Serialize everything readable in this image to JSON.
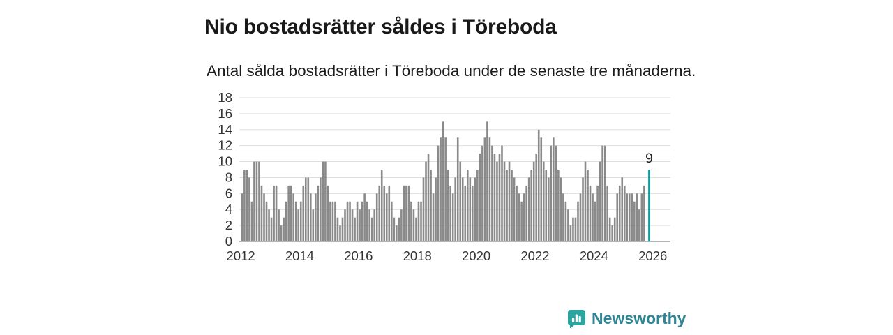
{
  "header": {
    "title": "Nio bostadsrätter såldes i Töreboda",
    "subtitle": "Antal sålda bostadsrätter i Töreboda under de senaste tre månaderna."
  },
  "chart_data": {
    "type": "bar",
    "title": "Nio bostadsrätter såldes i Töreboda",
    "subtitle": "Antal sålda bostadsrätter i Töreboda under de senaste tre månaderna.",
    "frequency": "monthly",
    "x_start_year": 2012,
    "x_tick_labels": [
      "2012",
      "2014",
      "2016",
      "2018",
      "2020",
      "2022",
      "2024",
      "2026"
    ],
    "y_ticks": [
      0,
      2,
      4,
      6,
      8,
      10,
      12,
      14,
      16,
      18
    ],
    "ylim": [
      0,
      18
    ],
    "grid": true,
    "legend": "none",
    "bar_color": "#8a8a8a",
    "highlight_color": "#00a2a2",
    "last_value_label": "9",
    "values": [
      6,
      9,
      9,
      8,
      5,
      10,
      10,
      10,
      7,
      6,
      5,
      4,
      3,
      7,
      7,
      4,
      2,
      3,
      5,
      7,
      7,
      6,
      5,
      4,
      5,
      7,
      8,
      8,
      6,
      4,
      6,
      7,
      8,
      10,
      10,
      7,
      5,
      5,
      5,
      3,
      2,
      3,
      4,
      5,
      5,
      4,
      3,
      5,
      4,
      5,
      6,
      5,
      4,
      3,
      4,
      6,
      7,
      9,
      7,
      6,
      7,
      5,
      3,
      2,
      3,
      4,
      7,
      7,
      7,
      5,
      4,
      3,
      5,
      5,
      8,
      10,
      11,
      9,
      6,
      8,
      12,
      13,
      15,
      13,
      9,
      7,
      6,
      8,
      13,
      10,
      8,
      7,
      9,
      8,
      7,
      8,
      9,
      11,
      12,
      13,
      15,
      13,
      12,
      11,
      10,
      11,
      12,
      10,
      9,
      10,
      9,
      8,
      7,
      6,
      5,
      6,
      7,
      8,
      9,
      10,
      11,
      14,
      13,
      10,
      9,
      8,
      12,
      13,
      12,
      9,
      8,
      6,
      5,
      4,
      2,
      3,
      3,
      5,
      6,
      8,
      10,
      9,
      7,
      6,
      5,
      7,
      10,
      12,
      12,
      7,
      3,
      2,
      3,
      6,
      7,
      8,
      7,
      6,
      6,
      6,
      5,
      6,
      4,
      6,
      7,
      null,
      9
    ]
  },
  "footer": {
    "brand": "Newsworthy"
  },
  "colors": {
    "brand_text": "#2e8594",
    "logo_fill": "#2aa5a0",
    "axis_text": "#333333",
    "gridline": "#dedede",
    "baseline": "#9b9b9b"
  }
}
